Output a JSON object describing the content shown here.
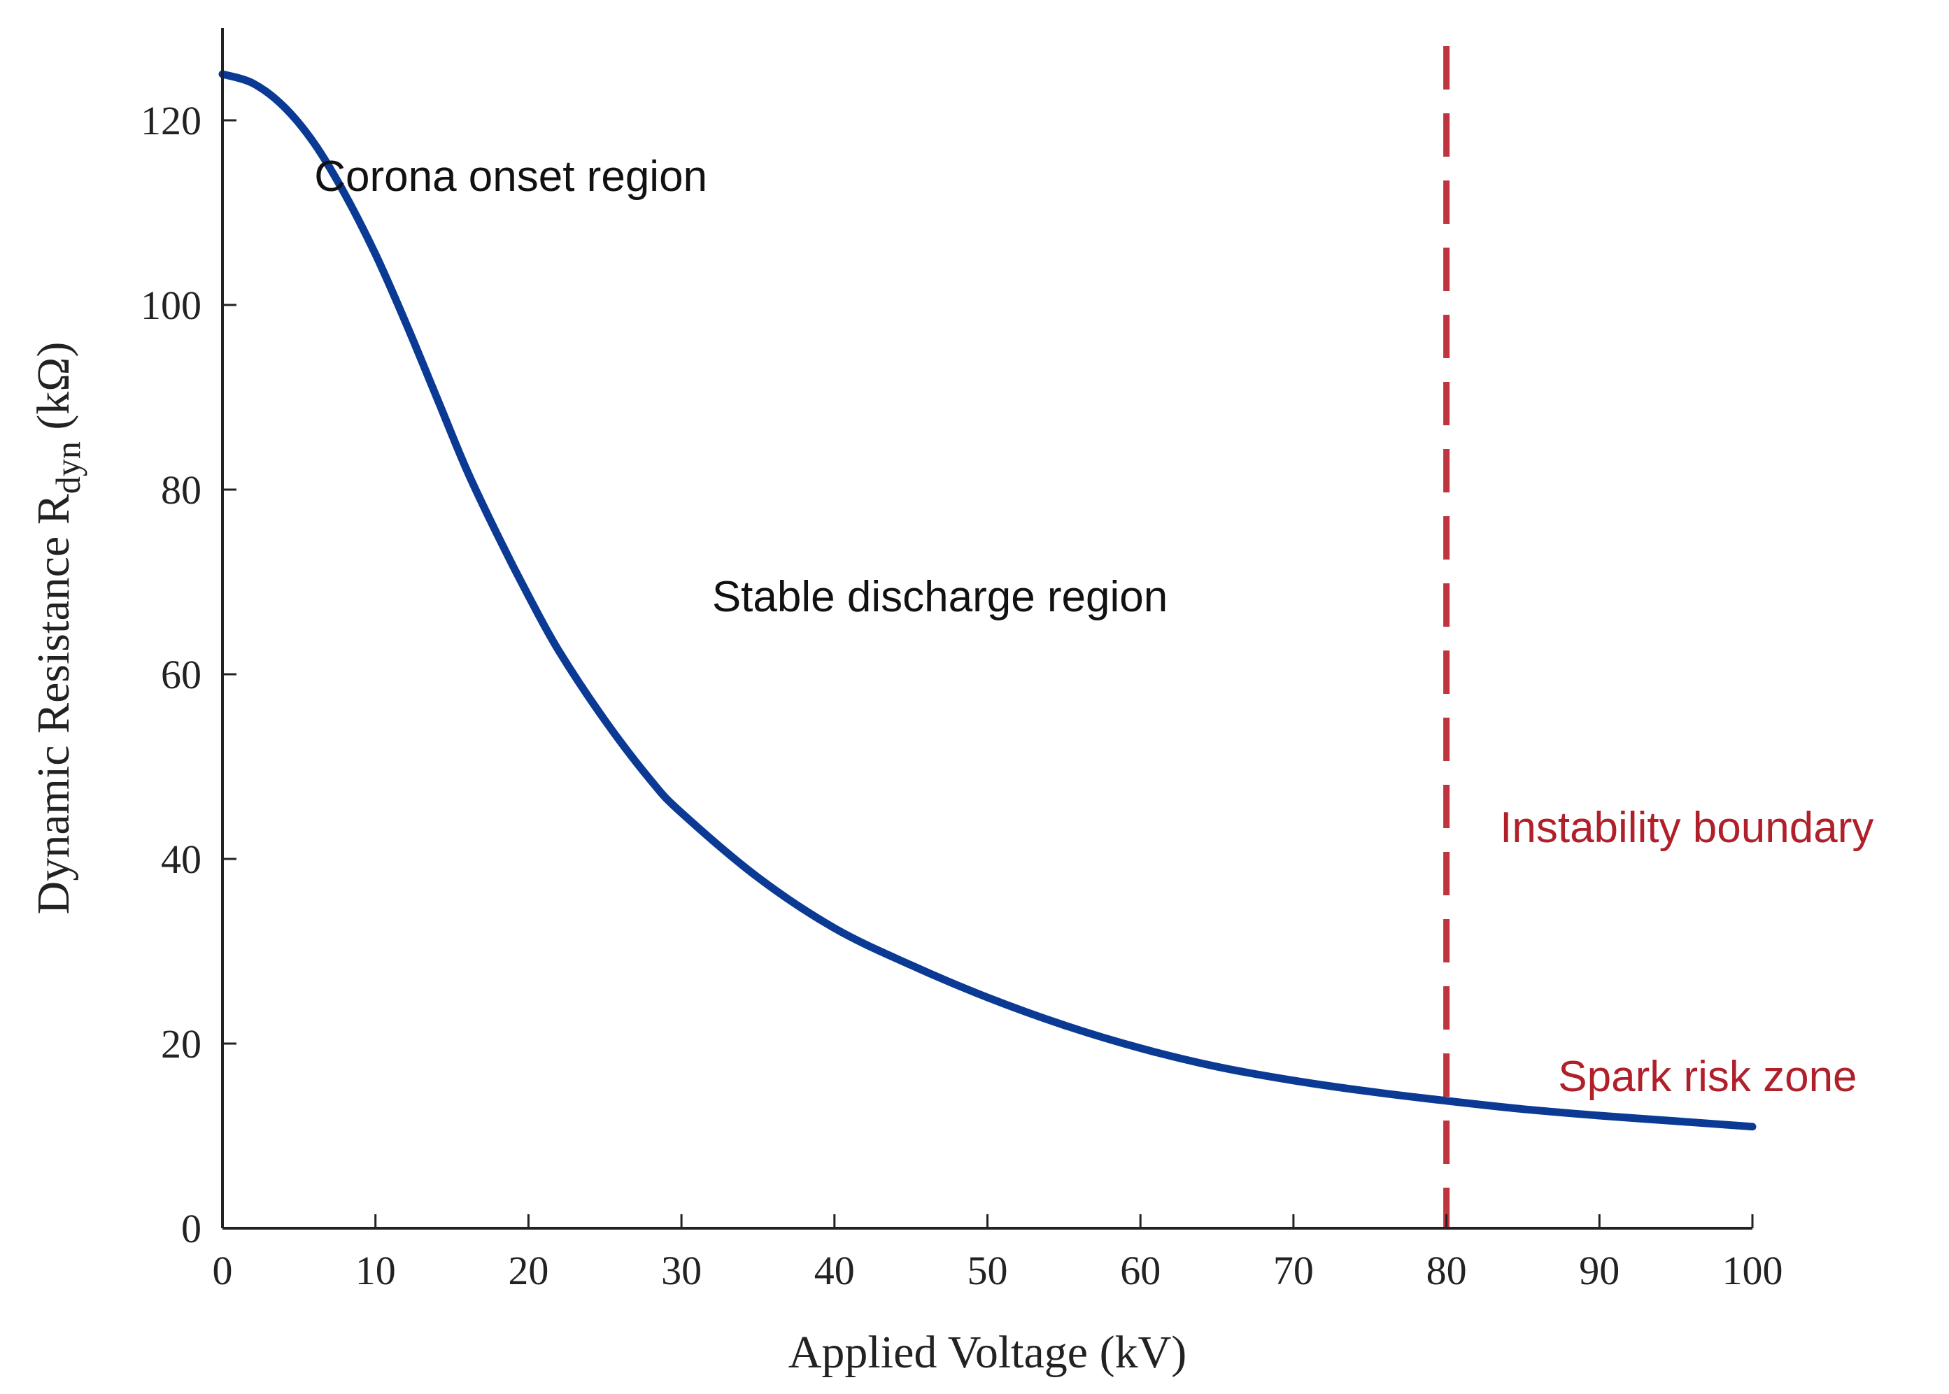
{
  "chart_data": {
    "type": "line",
    "title": "",
    "xlabel": "Applied Voltage (kV)",
    "ylabel": {
      "main": "Dynamic Resistance R",
      "subscript": "dyn",
      "unit": " (kΩ)"
    },
    "xlim": [
      0,
      100
    ],
    "ylim": [
      0,
      130
    ],
    "xticks": [
      0,
      10,
      20,
      30,
      40,
      50,
      60,
      70,
      80,
      90,
      100
    ],
    "yticks": [
      0,
      20,
      40,
      60,
      80,
      100,
      120
    ],
    "grid": false,
    "legend": "none",
    "series": [
      {
        "color": "#0b3a94",
        "x": [
          0,
          2,
          4,
          6,
          8,
          10,
          12,
          14,
          16,
          18,
          20,
          22,
          25,
          28,
          30,
          35,
          40,
          45,
          50,
          55,
          60,
          65,
          70,
          75,
          80,
          85,
          90,
          95,
          100
        ],
        "y": [
          125,
          124,
          121.5,
          117.5,
          112,
          105.5,
          98,
          90,
          82,
          75,
          68.5,
          62.5,
          55,
          48.5,
          45,
          38,
          32.5,
          28.5,
          25,
          22,
          19.5,
          17.5,
          16,
          14.8,
          13.8,
          12.9,
          12.2,
          11.6,
          11
        ]
      }
    ],
    "reference_lines": [
      {
        "axis": "x",
        "value": 80,
        "style": "dashed",
        "color": "#c0343f"
      }
    ],
    "annotations": [
      {
        "text": "Corona onset region",
        "x": 6,
        "y": 114,
        "color": "#111111"
      },
      {
        "text": "Stable discharge region",
        "x": 32,
        "y": 68.5,
        "color": "#111111"
      },
      {
        "text": "Instability boundary",
        "x": 83.5,
        "y": 43.5,
        "color": "#b0202a"
      },
      {
        "text": "Spark risk zone",
        "x": 87.3,
        "y": 16.5,
        "color": "#b0202a"
      }
    ]
  }
}
